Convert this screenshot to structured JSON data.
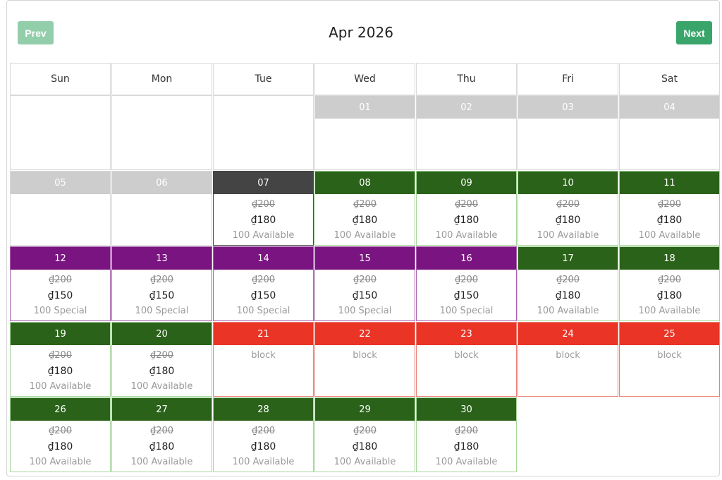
{
  "header": {
    "prev_label": "Prev",
    "next_label": "Next",
    "month_title": "Apr 2026"
  },
  "weekdays": [
    "Sun",
    "Mon",
    "Tue",
    "Wed",
    "Thu",
    "Fri",
    "Sat"
  ],
  "colors": {
    "past": "#cdcdcd",
    "today": "#444444",
    "available": "#2a6219",
    "special": "#7a1480",
    "block": "#e93426",
    "prev_button": "#93ceaa",
    "next_button": "#3aa56a"
  },
  "first_weekday_index": 3,
  "days": [
    {
      "day": "01",
      "state": "past"
    },
    {
      "day": "02",
      "state": "past"
    },
    {
      "day": "03",
      "state": "past"
    },
    {
      "day": "04",
      "state": "past"
    },
    {
      "day": "05",
      "state": "past"
    },
    {
      "day": "06",
      "state": "past"
    },
    {
      "day": "07",
      "state": "today",
      "original_price": "₫200",
      "price": "₫180",
      "status": "100 Available"
    },
    {
      "day": "08",
      "state": "available",
      "original_price": "₫200",
      "price": "₫180",
      "status": "100 Available"
    },
    {
      "day": "09",
      "state": "available",
      "original_price": "₫200",
      "price": "₫180",
      "status": "100 Available"
    },
    {
      "day": "10",
      "state": "available",
      "original_price": "₫200",
      "price": "₫180",
      "status": "100 Available"
    },
    {
      "day": "11",
      "state": "available",
      "original_price": "₫200",
      "price": "₫180",
      "status": "100 Available"
    },
    {
      "day": "12",
      "state": "special",
      "original_price": "₫200",
      "price": "₫150",
      "status": "100 Special"
    },
    {
      "day": "13",
      "state": "special",
      "original_price": "₫200",
      "price": "₫150",
      "status": "100 Special"
    },
    {
      "day": "14",
      "state": "special",
      "original_price": "₫200",
      "price": "₫150",
      "status": "100 Special"
    },
    {
      "day": "15",
      "state": "special",
      "original_price": "₫200",
      "price": "₫150",
      "status": "100 Special"
    },
    {
      "day": "16",
      "state": "special",
      "original_price": "₫200",
      "price": "₫150",
      "status": "100 Special"
    },
    {
      "day": "17",
      "state": "available",
      "original_price": "₫200",
      "price": "₫180",
      "status": "100 Available"
    },
    {
      "day": "18",
      "state": "available",
      "original_price": "₫200",
      "price": "₫180",
      "status": "100 Available"
    },
    {
      "day": "19",
      "state": "available",
      "original_price": "₫200",
      "price": "₫180",
      "status": "100 Available"
    },
    {
      "day": "20",
      "state": "available",
      "original_price": "₫200",
      "price": "₫180",
      "status": "100 Available"
    },
    {
      "day": "21",
      "state": "block",
      "status": "block"
    },
    {
      "day": "22",
      "state": "block",
      "status": "block"
    },
    {
      "day": "23",
      "state": "block",
      "status": "block"
    },
    {
      "day": "24",
      "state": "block",
      "status": "block"
    },
    {
      "day": "25",
      "state": "block",
      "status": "block"
    },
    {
      "day": "26",
      "state": "available",
      "original_price": "₫200",
      "price": "₫180",
      "status": "100 Available"
    },
    {
      "day": "27",
      "state": "available",
      "original_price": "₫200",
      "price": "₫180",
      "status": "100 Available"
    },
    {
      "day": "28",
      "state": "available",
      "original_price": "₫200",
      "price": "₫180",
      "status": "100 Available"
    },
    {
      "day": "29",
      "state": "available",
      "original_price": "₫200",
      "price": "₫180",
      "status": "100 Available"
    },
    {
      "day": "30",
      "state": "available",
      "original_price": "₫200",
      "price": "₫180",
      "status": "100 Available"
    }
  ]
}
